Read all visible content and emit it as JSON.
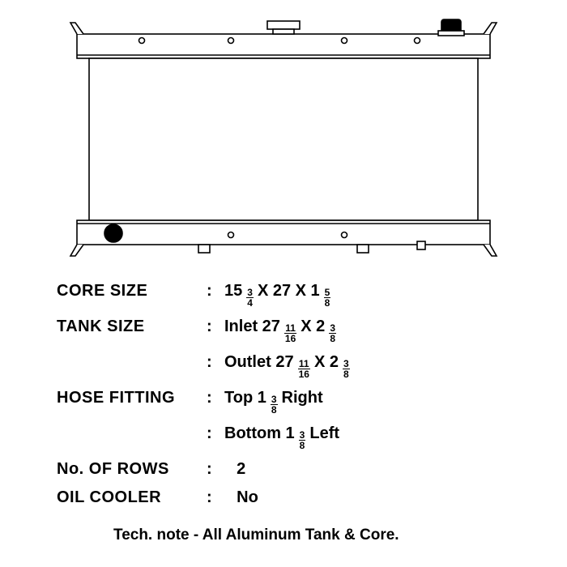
{
  "diagram": {
    "stroke": "#000000",
    "stroke_width": 1.6,
    "fill": "#ffffff",
    "background": "#ffffff"
  },
  "specs": {
    "core_size": {
      "label": "CORE SIZE",
      "value_parts": [
        "15",
        {
          "n": "3",
          "d": "4"
        },
        " X 27 X 1 ",
        {
          "n": "5",
          "d": "8"
        }
      ]
    },
    "tank_size": {
      "label": "TANK SIZE",
      "inlet_parts": [
        "Inlet  27 ",
        {
          "n": "11",
          "d": "16"
        },
        " X 2 ",
        {
          "n": "3",
          "d": "8"
        }
      ],
      "outlet_parts": [
        "Outlet  27 ",
        {
          "n": "11",
          "d": "16"
        },
        " X 2 ",
        {
          "n": "3",
          "d": "8"
        }
      ]
    },
    "hose_fitting": {
      "label": "HOSE FITTING",
      "top_parts": [
        "Top 1 ",
        {
          "n": "3",
          "d": "8"
        },
        " Right"
      ],
      "bottom_parts": [
        "Bottom 1 ",
        {
          "n": "3",
          "d": "8"
        },
        "  Left"
      ]
    },
    "rows": {
      "label": "No. OF ROWS",
      "value": "2"
    },
    "oil_cooler": {
      "label": "OIL COOLER",
      "value": "No"
    }
  },
  "tech_note": "Tech. note - All Aluminum Tank & Core."
}
